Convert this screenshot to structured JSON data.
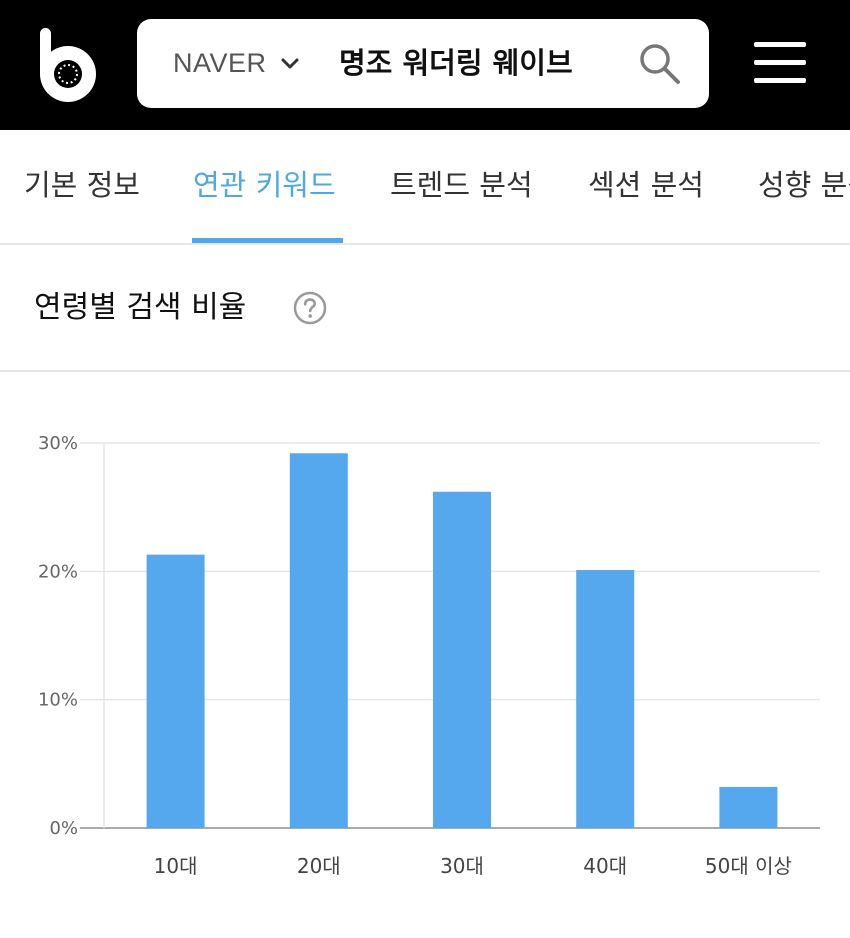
{
  "header": {
    "search_engine": "NAVER",
    "query": "명조 워더링 웨이브",
    "icons": [
      "logo-icon",
      "chevron-down-icon",
      "search-icon",
      "menu-icon"
    ]
  },
  "tabs": [
    {
      "label": "기본 정보",
      "active": false
    },
    {
      "label": "연관 키워드",
      "active": true
    },
    {
      "label": "트렌드 분석",
      "active": false
    },
    {
      "label": "섹션 분석",
      "active": false
    },
    {
      "label": "성향 분석",
      "active": false
    }
  ],
  "section": {
    "title": "연령별 검색 비율",
    "help_icon": "question-circle-icon"
  },
  "colors": {
    "accent": "#4ea7e6",
    "bar": "#55a8ee",
    "topbar": "#000000"
  },
  "chart_data": {
    "type": "bar",
    "categories": [
      "10대",
      "20대",
      "30대",
      "40대",
      "50대 이상"
    ],
    "values": [
      21.3,
      29.2,
      26.2,
      20.1,
      3.2
    ],
    "ylim": [
      0,
      30
    ],
    "yticks": [
      "0%",
      "10%",
      "20%",
      "30%"
    ],
    "title": "",
    "xlabel": "",
    "ylabel": "",
    "grid": true,
    "legend": "none"
  }
}
